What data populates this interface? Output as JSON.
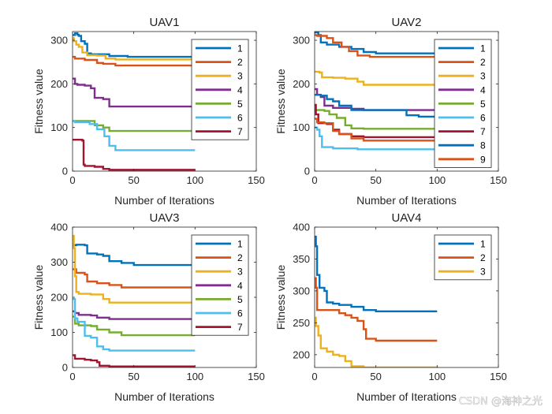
{
  "colors": [
    "#0072BD",
    "#D95319",
    "#EDB120",
    "#7E2F8E",
    "#77AC30",
    "#4DBEEE",
    "#A2142F",
    "#0072BD",
    "#D95319"
  ],
  "watermark": "CSDN @海神之光",
  "chart_data": [
    {
      "type": "line",
      "title": "UAV1",
      "xlabel": "Number of Iterations",
      "ylabel": "Fitness value",
      "xlim": [
        0,
        150
      ],
      "ylim": [
        0,
        320
      ],
      "xticks": [
        "0",
        "50",
        "100",
        "150"
      ],
      "yticks": [
        "0",
        "100",
        "200",
        "300"
      ],
      "ytick_values": [
        0,
        100,
        200,
        300
      ],
      "legend_position": "top-right",
      "series": [
        {
          "name": "1",
          "points": [
            [
              0,
              312
            ],
            [
              2,
              316
            ],
            [
              4,
              313
            ],
            [
              5,
              310
            ],
            [
              7,
              298
            ],
            [
              10,
              292
            ],
            [
              12,
              270
            ],
            [
              15,
              268
            ],
            [
              25,
              268
            ],
            [
              30,
              264
            ],
            [
              45,
              262
            ],
            [
              100,
              262
            ]
          ]
        },
        {
          "name": "2",
          "points": [
            [
              0,
              262
            ],
            [
              2,
              258
            ],
            [
              10,
              255
            ],
            [
              15,
              255
            ],
            [
              20,
              248
            ],
            [
              25,
              246
            ],
            [
              35,
              242
            ],
            [
              100,
              242
            ]
          ]
        },
        {
          "name": "3",
          "points": [
            [
              0,
              305
            ],
            [
              1,
              298
            ],
            [
              3,
              290
            ],
            [
              5,
              285
            ],
            [
              8,
              272
            ],
            [
              12,
              266
            ],
            [
              20,
              265
            ],
            [
              27,
              258
            ],
            [
              35,
              256
            ],
            [
              100,
              255
            ]
          ]
        },
        {
          "name": "4",
          "points": [
            [
              0,
              212
            ],
            [
              2,
              200
            ],
            [
              4,
              198
            ],
            [
              10,
              196
            ],
            [
              15,
              190
            ],
            [
              18,
              168
            ],
            [
              25,
              165
            ],
            [
              30,
              148
            ],
            [
              40,
              148
            ],
            [
              100,
              148
            ]
          ]
        },
        {
          "name": "5",
          "points": [
            [
              0,
              115
            ],
            [
              15,
              115
            ],
            [
              18,
              105
            ],
            [
              25,
              100
            ],
            [
              30,
              92
            ],
            [
              100,
              92
            ]
          ]
        },
        {
          "name": "6",
          "points": [
            [
              0,
              115
            ],
            [
              2,
              112
            ],
            [
              10,
              112
            ],
            [
              14,
              108
            ],
            [
              20,
              96
            ],
            [
              26,
              80
            ],
            [
              30,
              58
            ],
            [
              35,
              48
            ],
            [
              100,
              48
            ]
          ]
        },
        {
          "name": "7",
          "points": [
            [
              0,
              72
            ],
            [
              6,
              72
            ],
            [
              8,
              70
            ],
            [
              9,
              15
            ],
            [
              10,
              12
            ],
            [
              18,
              10
            ],
            [
              25,
              5
            ],
            [
              30,
              3
            ],
            [
              100,
              3
            ]
          ]
        }
      ]
    },
    {
      "type": "line",
      "title": "UAV2",
      "xlabel": "Number of Iterations",
      "ylabel": "Fitness value",
      "xlim": [
        0,
        150
      ],
      "ylim": [
        0,
        320
      ],
      "xticks": [
        "0",
        "50",
        "100",
        "150"
      ],
      "yticks": [
        "0",
        "100",
        "200",
        "300"
      ],
      "ytick_values": [
        0,
        100,
        200,
        300
      ],
      "legend_position": "top-right",
      "series": [
        {
          "name": "1",
          "points": [
            [
              0,
              318
            ],
            [
              3,
              312
            ],
            [
              5,
              295
            ],
            [
              10,
              290
            ],
            [
              20,
              285
            ],
            [
              30,
              280
            ],
            [
              40,
              273
            ],
            [
              50,
              270
            ],
            [
              100,
              270
            ]
          ]
        },
        {
          "name": "2",
          "points": [
            [
              0,
              312
            ],
            [
              2,
              310
            ],
            [
              10,
              305
            ],
            [
              15,
              295
            ],
            [
              22,
              285
            ],
            [
              28,
              275
            ],
            [
              35,
              265
            ],
            [
              45,
              262
            ],
            [
              100,
              262
            ]
          ]
        },
        {
          "name": "3",
          "points": [
            [
              0,
              228
            ],
            [
              4,
              226
            ],
            [
              6,
              215
            ],
            [
              15,
              214
            ],
            [
              25,
              212
            ],
            [
              35,
              205
            ],
            [
              40,
              198
            ],
            [
              100,
              198
            ]
          ]
        },
        {
          "name": "4",
          "points": [
            [
              0,
              188
            ],
            [
              2,
              175
            ],
            [
              5,
              170
            ],
            [
              8,
              150
            ],
            [
              15,
              145
            ],
            [
              30,
              143
            ],
            [
              40,
              140
            ],
            [
              100,
              140
            ]
          ]
        },
        {
          "name": "5",
          "points": [
            [
              0,
              140
            ],
            [
              8,
              138
            ],
            [
              12,
              130
            ],
            [
              18,
              122
            ],
            [
              25,
              105
            ],
            [
              30,
              98
            ],
            [
              40,
              97
            ],
            [
              100,
              97
            ]
          ]
        },
        {
          "name": "6",
          "points": [
            [
              0,
              100
            ],
            [
              2,
              95
            ],
            [
              4,
              80
            ],
            [
              6,
              55
            ],
            [
              15,
              52
            ],
            [
              25,
              52
            ],
            [
              35,
              50
            ],
            [
              100,
              50
            ]
          ]
        },
        {
          "name": "7",
          "points": [
            [
              0,
              152
            ],
            [
              1,
              130
            ],
            [
              3,
              110
            ],
            [
              10,
              108
            ],
            [
              15,
              95
            ],
            [
              20,
              85
            ],
            [
              30,
              80
            ],
            [
              40,
              78
            ],
            [
              100,
              78
            ]
          ]
        },
        {
          "name": "8",
          "points": [
            [
              0,
              175
            ],
            [
              5,
              173
            ],
            [
              10,
              165
            ],
            [
              15,
              160
            ],
            [
              20,
              150
            ],
            [
              30,
              140
            ],
            [
              60,
              140
            ],
            [
              75,
              128
            ],
            [
              85,
              125
            ],
            [
              100,
              125
            ]
          ]
        },
        {
          "name": "9",
          "points": [
            [
              0,
              120
            ],
            [
              2,
              112
            ],
            [
              8,
              110
            ],
            [
              15,
              92
            ],
            [
              20,
              85
            ],
            [
              30,
              75
            ],
            [
              40,
              70
            ],
            [
              100,
              70
            ]
          ]
        }
      ]
    },
    {
      "type": "line",
      "title": "UAV3",
      "xlabel": "Number of Iterations",
      "ylabel": "Fitness value",
      "xlim": [
        0,
        150
      ],
      "ylim": [
        0,
        400
      ],
      "xticks": [
        "0",
        "50",
        "100",
        "150"
      ],
      "yticks": [
        "0",
        "100",
        "200",
        "300",
        "400"
      ],
      "ytick_values": [
        0,
        100,
        200,
        300,
        400
      ],
      "legend_position": "top-right",
      "series": [
        {
          "name": "1",
          "points": [
            [
              0,
              348
            ],
            [
              3,
              350
            ],
            [
              10,
              348
            ],
            [
              12,
              325
            ],
            [
              20,
              322
            ],
            [
              25,
              318
            ],
            [
              30,
              303
            ],
            [
              40,
              298
            ],
            [
              50,
              292
            ],
            [
              100,
              292
            ]
          ]
        },
        {
          "name": "2",
          "points": [
            [
              0,
              280
            ],
            [
              3,
              270
            ],
            [
              10,
              265
            ],
            [
              12,
              245
            ],
            [
              20,
              240
            ],
            [
              30,
              235
            ],
            [
              40,
              228
            ],
            [
              100,
              228
            ]
          ]
        },
        {
          "name": "3",
          "points": [
            [
              0,
              375
            ],
            [
              1,
              340
            ],
            [
              2,
              260
            ],
            [
              3,
              215
            ],
            [
              5,
              210
            ],
            [
              15,
              208
            ],
            [
              25,
              195
            ],
            [
              30,
              185
            ],
            [
              100,
              182
            ]
          ]
        },
        {
          "name": "4",
          "points": [
            [
              0,
              160
            ],
            [
              2,
              155
            ],
            [
              5,
              150
            ],
            [
              15,
              148
            ],
            [
              20,
              142
            ],
            [
              30,
              138
            ],
            [
              100,
              138
            ]
          ]
        },
        {
          "name": "5",
          "points": [
            [
              0,
              145
            ],
            [
              2,
              125
            ],
            [
              5,
              120
            ],
            [
              15,
              118
            ],
            [
              20,
              108
            ],
            [
              30,
              100
            ],
            [
              40,
              92
            ],
            [
              100,
              92
            ]
          ]
        },
        {
          "name": "6",
          "points": [
            [
              0,
              195
            ],
            [
              2,
              140
            ],
            [
              4,
              130
            ],
            [
              10,
              90
            ],
            [
              15,
              85
            ],
            [
              20,
              60
            ],
            [
              25,
              52
            ],
            [
              30,
              48
            ],
            [
              100,
              48
            ]
          ]
        },
        {
          "name": "7",
          "points": [
            [
              0,
              35
            ],
            [
              2,
              25
            ],
            [
              10,
              22
            ],
            [
              15,
              20
            ],
            [
              20,
              15
            ],
            [
              22,
              5
            ],
            [
              30,
              3
            ],
            [
              100,
              3
            ]
          ]
        }
      ]
    },
    {
      "type": "line",
      "title": "UAV4",
      "xlabel": "Number of Iterations",
      "ylabel": "Fitness value",
      "xlim": [
        0,
        150
      ],
      "ylim": [
        180,
        400
      ],
      "xticks": [
        "0",
        "50",
        "100",
        "150"
      ],
      "yticks": [
        "200",
        "250",
        "300",
        "350",
        "400"
      ],
      "ytick_values": [
        200,
        250,
        300,
        350,
        400
      ],
      "legend_position": "top-right",
      "series": [
        {
          "name": "1",
          "points": [
            [
              0,
              385
            ],
            [
              1,
              370
            ],
            [
              2,
              325
            ],
            [
              4,
              305
            ],
            [
              8,
              300
            ],
            [
              10,
              282
            ],
            [
              15,
              280
            ],
            [
              20,
              278
            ],
            [
              30,
              275
            ],
            [
              40,
              270
            ],
            [
              50,
              268
            ],
            [
              100,
              268
            ]
          ]
        },
        {
          "name": "2",
          "points": [
            [
              0,
              320
            ],
            [
              1,
              305
            ],
            [
              2,
              270
            ],
            [
              10,
              270
            ],
            [
              20,
              265
            ],
            [
              25,
              262
            ],
            [
              30,
              258
            ],
            [
              35,
              253
            ],
            [
              40,
              240
            ],
            [
              42,
              225
            ],
            [
              50,
              222
            ],
            [
              100,
              222
            ]
          ]
        },
        {
          "name": "3",
          "points": [
            [
              0,
              258
            ],
            [
              1,
              245
            ],
            [
              3,
              230
            ],
            [
              5,
              210
            ],
            [
              10,
              205
            ],
            [
              15,
              200
            ],
            [
              20,
              198
            ],
            [
              25,
              190
            ],
            [
              30,
              182
            ],
            [
              40,
              180
            ],
            [
              100,
              179
            ]
          ]
        }
      ]
    }
  ]
}
